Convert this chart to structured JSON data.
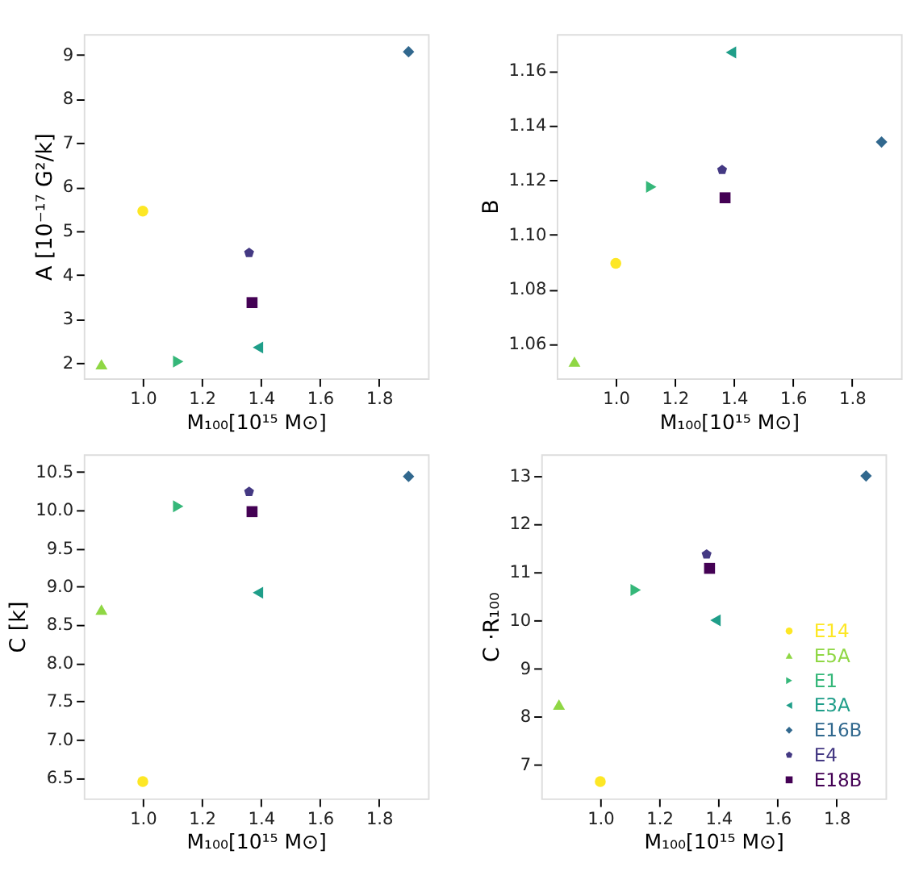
{
  "chart_data": [
    {
      "type": "scatter",
      "xlabel": "M₁₀₀[10¹⁵ M⊙]",
      "ylabel": "A [10⁻¹⁷ G²/k]",
      "xlim": [
        0.8,
        1.966
      ],
      "xticks": [
        {
          "value": 1,
          "label": "1.0"
        },
        {
          "value": 1.2,
          "label": "1.2"
        },
        {
          "value": 1.4,
          "label": "1.4"
        },
        {
          "value": 1.6,
          "label": "1.6"
        },
        {
          "value": 1.8,
          "label": "1.8"
        }
      ],
      "ylim": [
        1.65,
        9.47
      ],
      "yticks": [
        2,
        3,
        4,
        5,
        6,
        7,
        8,
        9
      ],
      "grid": false,
      "legend": false,
      "series": [
        {
          "color": "#fde725",
          "marker": "circle",
          "x": [
            1.0
          ],
          "values": [
            5.45
          ]
        },
        {
          "color": "#8fd744",
          "marker": "triangle-up",
          "x": [
            0.86
          ],
          "values": [
            1.97
          ]
        },
        {
          "color": "#35b779",
          "marker": "triangle-right",
          "x": [
            1.12
          ],
          "values": [
            2.03
          ]
        },
        {
          "color": "#1f9e89",
          "marker": "triangle-left",
          "x": [
            1.39
          ],
          "values": [
            2.35
          ]
        },
        {
          "color": "#31688e",
          "marker": "diamond",
          "x": [
            1.9
          ],
          "values": [
            9.07
          ]
        },
        {
          "color": "#443983",
          "x": [
            1.36
          ],
          "values": [
            4.5
          ]
        },
        {
          "color": "#440154",
          "marker": "square",
          "x": [
            1.37
          ],
          "values": [
            3.37
          ]
        }
      ]
    },
    {
      "type": "scatter",
      "xlabel": "M₁₀₀[10¹⁵ M⊙]",
      "ylabel": "B",
      "xlim": [
        0.8,
        1.966
      ],
      "xticks": [
        {
          "value": 1,
          "label": "1.0"
        },
        {
          "value": 1.2,
          "label": "1.2"
        },
        {
          "value": 1.4,
          "label": "1.4"
        },
        {
          "value": 1.6,
          "label": "1.6"
        },
        {
          "value": 1.8,
          "label": "1.8"
        }
      ],
      "ylim": [
        1.0474,
        1.1734
      ],
      "yticks": [
        1.06,
        1.08,
        {
          "value": 1.1,
          "label": "1.10"
        },
        1.12,
        1.14,
        1.16
      ],
      "grid": false,
      "legend": false,
      "series": [
        {
          "color": "#fde725",
          "marker": "circle",
          "x": [
            1.0
          ],
          "values": [
            1.0895
          ]
        },
        {
          "color": "#8fd744",
          "marker": "triangle-up",
          "x": [
            0.86
          ],
          "values": [
            1.0535
          ]
        },
        {
          "color": "#35b779",
          "marker": "triangle-right",
          "x": [
            1.12
          ],
          "values": [
            1.1175
          ]
        },
        {
          "color": "#1f9e89",
          "marker": "triangle-left",
          "x": [
            1.39
          ],
          "values": [
            1.1667
          ]
        },
        {
          "color": "#31688e",
          "marker": "diamond",
          "x": [
            1.9
          ],
          "values": [
            1.1339
          ]
        },
        {
          "color": "#443983",
          "x": [
            1.36
          ],
          "values": [
            1.1237
          ]
        },
        {
          "color": "#440154",
          "marker": "square",
          "x": [
            1.37
          ],
          "values": [
            1.1135
          ]
        }
      ]
    },
    {
      "type": "scatter",
      "xlabel": "M₁₀₀[10¹⁵ M⊙]",
      "ylabel": "C [k]",
      "xlim": [
        0.8,
        1.966
      ],
      "xticks": [
        {
          "value": 1,
          "label": "1.0"
        },
        {
          "value": 1.2,
          "label": "1.2"
        },
        {
          "value": 1.4,
          "label": "1.4"
        },
        {
          "value": 1.6,
          "label": "1.6"
        },
        {
          "value": 1.8,
          "label": "1.8"
        }
      ],
      "ylim": [
        6.23,
        10.73
      ],
      "yticks": [
        6.5,
        {
          "value": 7,
          "label": "7.0"
        },
        7.5,
        {
          "value": 8,
          "label": "8.0"
        },
        8.5,
        {
          "value": 9,
          "label": "9.0"
        },
        9.5,
        {
          "value": 10,
          "label": "10.0"
        },
        10.5
      ],
      "grid": false,
      "legend": false,
      "series": [
        {
          "color": "#fde725",
          "marker": "circle",
          "x": [
            1.0
          ],
          "values": [
            6.45
          ]
        },
        {
          "color": "#8fd744",
          "marker": "triangle-up",
          "x": [
            0.86
          ],
          "values": [
            8.7
          ]
        },
        {
          "color": "#35b779",
          "marker": "triangle-right",
          "x": [
            1.12
          ],
          "values": [
            10.05
          ]
        },
        {
          "color": "#1f9e89",
          "marker": "triangle-left",
          "x": [
            1.39
          ],
          "values": [
            8.92
          ]
        },
        {
          "color": "#31688e",
          "marker": "diamond",
          "x": [
            1.9
          ],
          "values": [
            10.44
          ]
        },
        {
          "color": "#443983",
          "x": [
            1.36
          ],
          "values": [
            10.24
          ]
        },
        {
          "color": "#440154",
          "marker": "square",
          "x": [
            1.37
          ],
          "values": [
            9.98
          ]
        }
      ]
    },
    {
      "type": "scatter",
      "xlabel": "M₁₀₀[10¹⁵ M⊙]",
      "ylabel": "C ·R₁₀₀",
      "xlim": [
        0.8,
        1.966
      ],
      "xticks": [
        {
          "value": 1,
          "label": "1.0"
        },
        {
          "value": 1.2,
          "label": "1.2"
        },
        {
          "value": 1.4,
          "label": "1.4"
        },
        {
          "value": 1.6,
          "label": "1.6"
        },
        {
          "value": 1.8,
          "label": "1.8"
        }
      ],
      "ylim": [
        6.3,
        13.45
      ],
      "yticks": [
        7,
        8,
        9,
        10,
        11,
        12,
        13
      ],
      "grid": false,
      "legend": "bottom right",
      "series": [
        {
          "name": "E14",
          "color": "#fde725",
          "marker": "circle",
          "x": [
            1.0
          ],
          "values": [
            6.65
          ]
        },
        {
          "name": "E5A",
          "color": "#8fd744",
          "marker": "triangle-up",
          "x": [
            0.86
          ],
          "values": [
            8.25
          ]
        },
        {
          "name": "E1",
          "color": "#35b779",
          "marker": "triangle-right",
          "x": [
            1.12
          ],
          "values": [
            10.63
          ]
        },
        {
          "name": "E3A",
          "color": "#1f9e89",
          "marker": "triangle-left",
          "x": [
            1.39
          ],
          "values": [
            10.0
          ]
        },
        {
          "name": "E16B",
          "color": "#31688e",
          "marker": "diamond",
          "x": [
            1.9
          ],
          "values": [
            13.0
          ]
        },
        {
          "name": "E4",
          "color": "#443983",
          "x": [
            1.36
          ],
          "values": [
            11.37
          ]
        },
        {
          "name": "E18B",
          "color": "#440154",
          "marker": "square",
          "x": [
            1.37
          ],
          "values": [
            11.08
          ]
        }
      ]
    }
  ]
}
